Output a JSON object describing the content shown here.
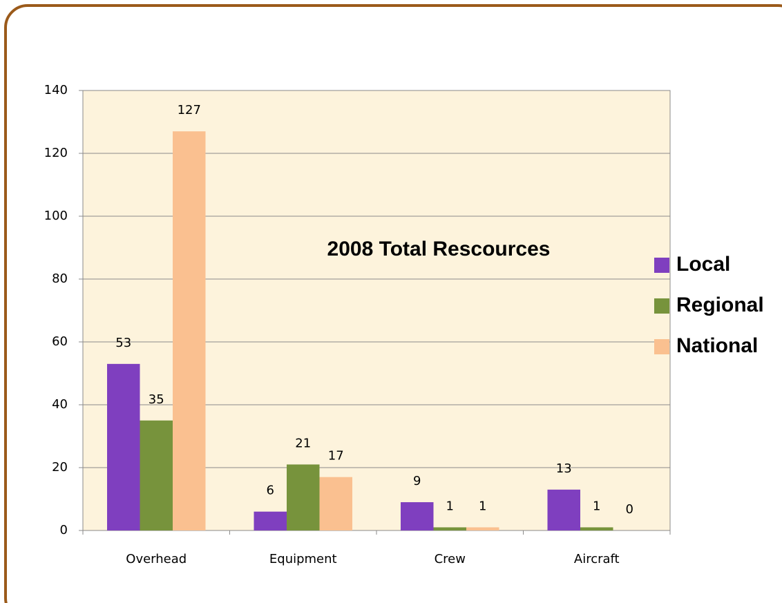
{
  "chart_data": {
    "type": "bar",
    "title": "2008 Total Rescources",
    "categories": [
      "Overhead",
      "Equipment",
      "Crew",
      "Aircraft"
    ],
    "series": [
      {
        "name": "Local",
        "color": "#7f3fbf",
        "values": [
          53,
          6,
          9,
          13
        ]
      },
      {
        "name": "Regional",
        "color": "#77933c",
        "values": [
          35,
          21,
          1,
          1
        ]
      },
      {
        "name": "National",
        "color": "#fac090",
        "values": [
          127,
          17,
          1,
          0
        ]
      }
    ],
    "ylim": [
      0,
      140
    ],
    "yticks": [
      0,
      20,
      40,
      60,
      80,
      100,
      120,
      140
    ],
    "grid": true,
    "legend": "right"
  }
}
